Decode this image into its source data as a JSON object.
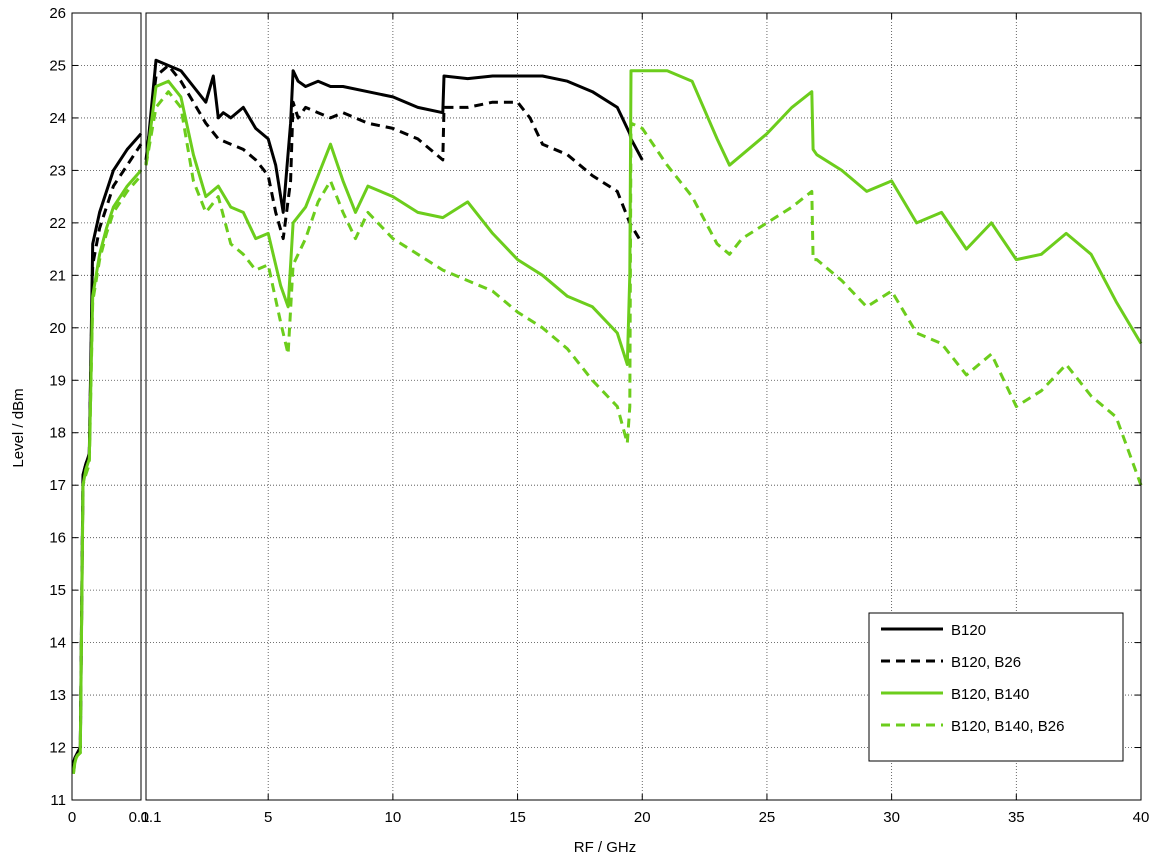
{
  "chart_data": {
    "type": "line",
    "xlabel": "RF / GHz",
    "ylabel": "Level / dBm",
    "ylim": [
      11,
      26
    ],
    "grid": true,
    "legend_position": "bottom-right",
    "x_axis_note": "broken axis: left segment 0 to 0.1 GHz, right segment 0.1 to 40 GHz",
    "x_segments": [
      {
        "range": [
          0,
          0.1
        ],
        "tick_labels": [
          "0",
          "0.1"
        ]
      },
      {
        "range": [
          0.1,
          40
        ],
        "tick_labels": [
          "0.1",
          "5",
          "10",
          "15",
          "20",
          "25",
          "30",
          "35",
          "40"
        ]
      }
    ],
    "y_tick_labels": [
      "11",
      "12",
      "13",
      "14",
      "15",
      "16",
      "17",
      "18",
      "19",
      "20",
      "21",
      "22",
      "23",
      "24",
      "25",
      "26"
    ],
    "series": [
      {
        "name": "B120",
        "color": "#000000",
        "dash": "solid",
        "low": {
          "x": [
            0.002,
            0.004,
            0.006,
            0.008,
            0.012,
            0.016,
            0.02,
            0.025,
            0.03,
            0.04,
            0.05,
            0.06,
            0.08,
            0.1
          ],
          "y": [
            11.7,
            11.8,
            11.85,
            11.9,
            12.0,
            17.2,
            17.4,
            17.6,
            21.6,
            22.2,
            22.6,
            23.0,
            23.4,
            23.7
          ]
        },
        "high": {
          "x": [
            0.1,
            0.5,
            1,
            1.5,
            2,
            2.5,
            2.8,
            3,
            3.2,
            3.5,
            4,
            4.5,
            5,
            5.3,
            5.6,
            5.9,
            6.0,
            6.2,
            6.5,
            7,
            7.5,
            8,
            9,
            10,
            11,
            12,
            12.05,
            13,
            14,
            15,
            16,
            17,
            18,
            19,
            19.5,
            19.55,
            20
          ],
          "y": [
            23.1,
            25.1,
            25.0,
            24.9,
            24.6,
            24.3,
            24.8,
            24.0,
            24.1,
            24.0,
            24.2,
            23.8,
            23.6,
            23.1,
            22.2,
            23.9,
            24.9,
            24.7,
            24.6,
            24.7,
            24.6,
            24.6,
            24.5,
            24.4,
            24.2,
            24.1,
            24.8,
            24.75,
            24.8,
            24.8,
            24.8,
            24.7,
            24.5,
            24.2,
            23.7,
            23.6,
            23.2
          ]
        }
      },
      {
        "name": "B120, B26",
        "color": "#000000",
        "dash": "dashed",
        "low": {
          "x": [
            0.002,
            0.004,
            0.006,
            0.008,
            0.012,
            0.016,
            0.02,
            0.025,
            0.03,
            0.04,
            0.05,
            0.06,
            0.08,
            0.1
          ],
          "y": [
            11.6,
            11.8,
            11.85,
            11.9,
            12.0,
            17.2,
            17.4,
            17.6,
            21.2,
            21.9,
            22.3,
            22.7,
            23.1,
            23.5
          ]
        },
        "high": {
          "x": [
            0.1,
            0.5,
            1,
            1.5,
            2,
            2.5,
            3,
            3.5,
            4,
            4.5,
            5,
            5.3,
            5.6,
            5.9,
            6.0,
            6.2,
            6.5,
            7,
            7.5,
            8,
            9,
            10,
            11,
            12,
            12.05,
            13,
            14,
            15,
            15.5,
            16,
            17,
            18,
            19,
            19.5,
            20
          ],
          "y": [
            23.2,
            24.8,
            25.0,
            24.7,
            24.3,
            23.9,
            23.6,
            23.5,
            23.4,
            23.2,
            22.9,
            22.2,
            21.7,
            22.8,
            24.3,
            24.0,
            24.2,
            24.1,
            24.0,
            24.1,
            23.9,
            23.8,
            23.6,
            23.2,
            24.2,
            24.2,
            24.3,
            24.3,
            24.0,
            23.5,
            23.3,
            22.9,
            22.6,
            22.0,
            21.6
          ]
        }
      },
      {
        "name": "B120, B140",
        "color": "#6ccd1c",
        "dash": "solid",
        "low": {
          "x": [
            0.002,
            0.004,
            0.006,
            0.008,
            0.012,
            0.016,
            0.02,
            0.025,
            0.03,
            0.04,
            0.05,
            0.06,
            0.08,
            0.1
          ],
          "y": [
            11.5,
            11.7,
            11.8,
            11.85,
            11.9,
            17.0,
            17.3,
            17.5,
            20.6,
            21.4,
            21.9,
            22.3,
            22.7,
            23.0
          ]
        },
        "high": {
          "x": [
            0.1,
            0.5,
            1,
            1.5,
            2,
            2.5,
            3,
            3.5,
            4,
            4.5,
            5,
            5.5,
            5.8,
            6.0,
            6.5,
            7,
            7.5,
            8,
            8.5,
            9,
            10,
            11,
            12,
            13,
            14,
            15,
            16,
            17,
            18,
            19,
            19.4,
            19.5,
            19.55,
            20,
            21,
            22,
            23,
            23.5,
            24,
            25,
            26,
            26.8,
            26.85,
            27,
            28,
            29,
            30,
            31,
            32,
            33,
            34,
            35,
            36,
            37,
            38,
            39,
            40
          ],
          "y": [
            23.1,
            24.6,
            24.7,
            24.4,
            23.3,
            22.5,
            22.7,
            22.3,
            22.2,
            21.7,
            21.8,
            20.8,
            20.4,
            22.0,
            22.3,
            22.9,
            23.5,
            22.8,
            22.2,
            22.7,
            22.5,
            22.2,
            22.1,
            22.4,
            21.8,
            21.3,
            21.0,
            20.6,
            20.4,
            19.9,
            19.3,
            21.0,
            24.9,
            24.9,
            24.9,
            24.7,
            23.6,
            23.1,
            23.3,
            23.7,
            24.2,
            24.5,
            23.4,
            23.3,
            23.0,
            22.6,
            22.8,
            22.0,
            22.2,
            21.5,
            22.0,
            21.3,
            21.4,
            21.8,
            21.4,
            20.5,
            19.7
          ]
        }
      },
      {
        "name": "B120, B140, B26",
        "color": "#6ccd1c",
        "dash": "dashed",
        "low": {
          "x": [
            0.002,
            0.004,
            0.006,
            0.008,
            0.012,
            0.016,
            0.02,
            0.025,
            0.03,
            0.04,
            0.05,
            0.06,
            0.08,
            0.1
          ],
          "y": [
            11.5,
            11.7,
            11.8,
            11.85,
            11.9,
            17.0,
            17.2,
            17.4,
            20.5,
            21.3,
            21.8,
            22.2,
            22.6,
            22.9
          ]
        },
        "high": {
          "x": [
            0.1,
            0.5,
            1,
            1.5,
            2,
            2.5,
            3,
            3.5,
            4,
            4.5,
            5,
            5.5,
            5.8,
            6.0,
            6.5,
            7,
            7.5,
            8,
            8.5,
            9,
            10,
            11,
            12,
            13,
            14,
            15,
            16,
            17,
            18,
            19,
            19.4,
            19.5,
            19.55,
            20,
            21,
            22,
            23,
            23.5,
            24,
            25,
            26,
            26.8,
            26.85,
            27,
            28,
            29,
            30,
            31,
            32,
            33,
            34,
            35,
            36,
            37,
            38,
            39,
            40
          ],
          "y": [
            23.1,
            24.2,
            24.5,
            24.2,
            22.8,
            22.2,
            22.5,
            21.6,
            21.4,
            21.1,
            21.2,
            20.1,
            19.5,
            21.2,
            21.7,
            22.4,
            22.8,
            22.2,
            21.7,
            22.2,
            21.7,
            21.4,
            21.1,
            20.9,
            20.7,
            20.3,
            20.0,
            19.6,
            19.0,
            18.5,
            17.8,
            18.5,
            23.9,
            23.8,
            23.1,
            22.5,
            21.6,
            21.4,
            21.7,
            22.0,
            22.3,
            22.6,
            21.3,
            21.3,
            20.9,
            20.4,
            20.7,
            19.9,
            19.7,
            19.1,
            19.5,
            18.5,
            18.8,
            19.3,
            18.7,
            18.3,
            17.0
          ]
        }
      }
    ]
  }
}
